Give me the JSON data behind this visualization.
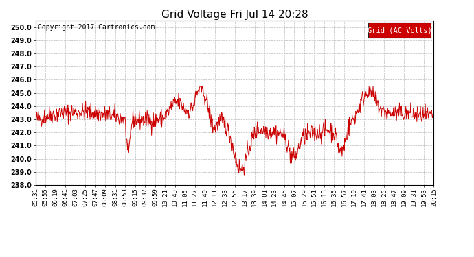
{
  "title": "Grid Voltage Fri Jul 14 20:28",
  "copyright": "Copyright 2017 Cartronics.com",
  "legend_label": "Grid (AC Volts)",
  "legend_bg": "#cc0000",
  "legend_text_color": "#ffffff",
  "line_color": "#cc0000",
  "bg_color": "#ffffff",
  "plot_bg_color": "#ffffff",
  "grid_color": "#bbbbbb",
  "ylim": [
    238.0,
    250.5
  ],
  "yticks": [
    238.0,
    239.0,
    240.0,
    241.0,
    242.0,
    243.0,
    244.0,
    245.0,
    246.0,
    247.0,
    248.0,
    249.0,
    250.0
  ],
  "xtick_labels": [
    "05:31",
    "05:55",
    "06:19",
    "06:41",
    "07:03",
    "07:25",
    "07:47",
    "08:09",
    "08:31",
    "08:53",
    "09:15",
    "09:37",
    "09:59",
    "10:21",
    "10:43",
    "11:05",
    "11:27",
    "11:49",
    "12:11",
    "12:33",
    "12:55",
    "13:17",
    "13:39",
    "14:01",
    "14:23",
    "14:45",
    "15:07",
    "15:29",
    "15:51",
    "16:13",
    "16:35",
    "16:57",
    "17:19",
    "17:41",
    "18:03",
    "18:25",
    "18:47",
    "19:09",
    "19:31",
    "19:53",
    "20:15"
  ],
  "title_fontsize": 11,
  "copyright_fontsize": 7,
  "tick_fontsize": 6.5,
  "ytick_fontsize": 7,
  "legend_fontsize": 7.5,
  "seed": 42
}
